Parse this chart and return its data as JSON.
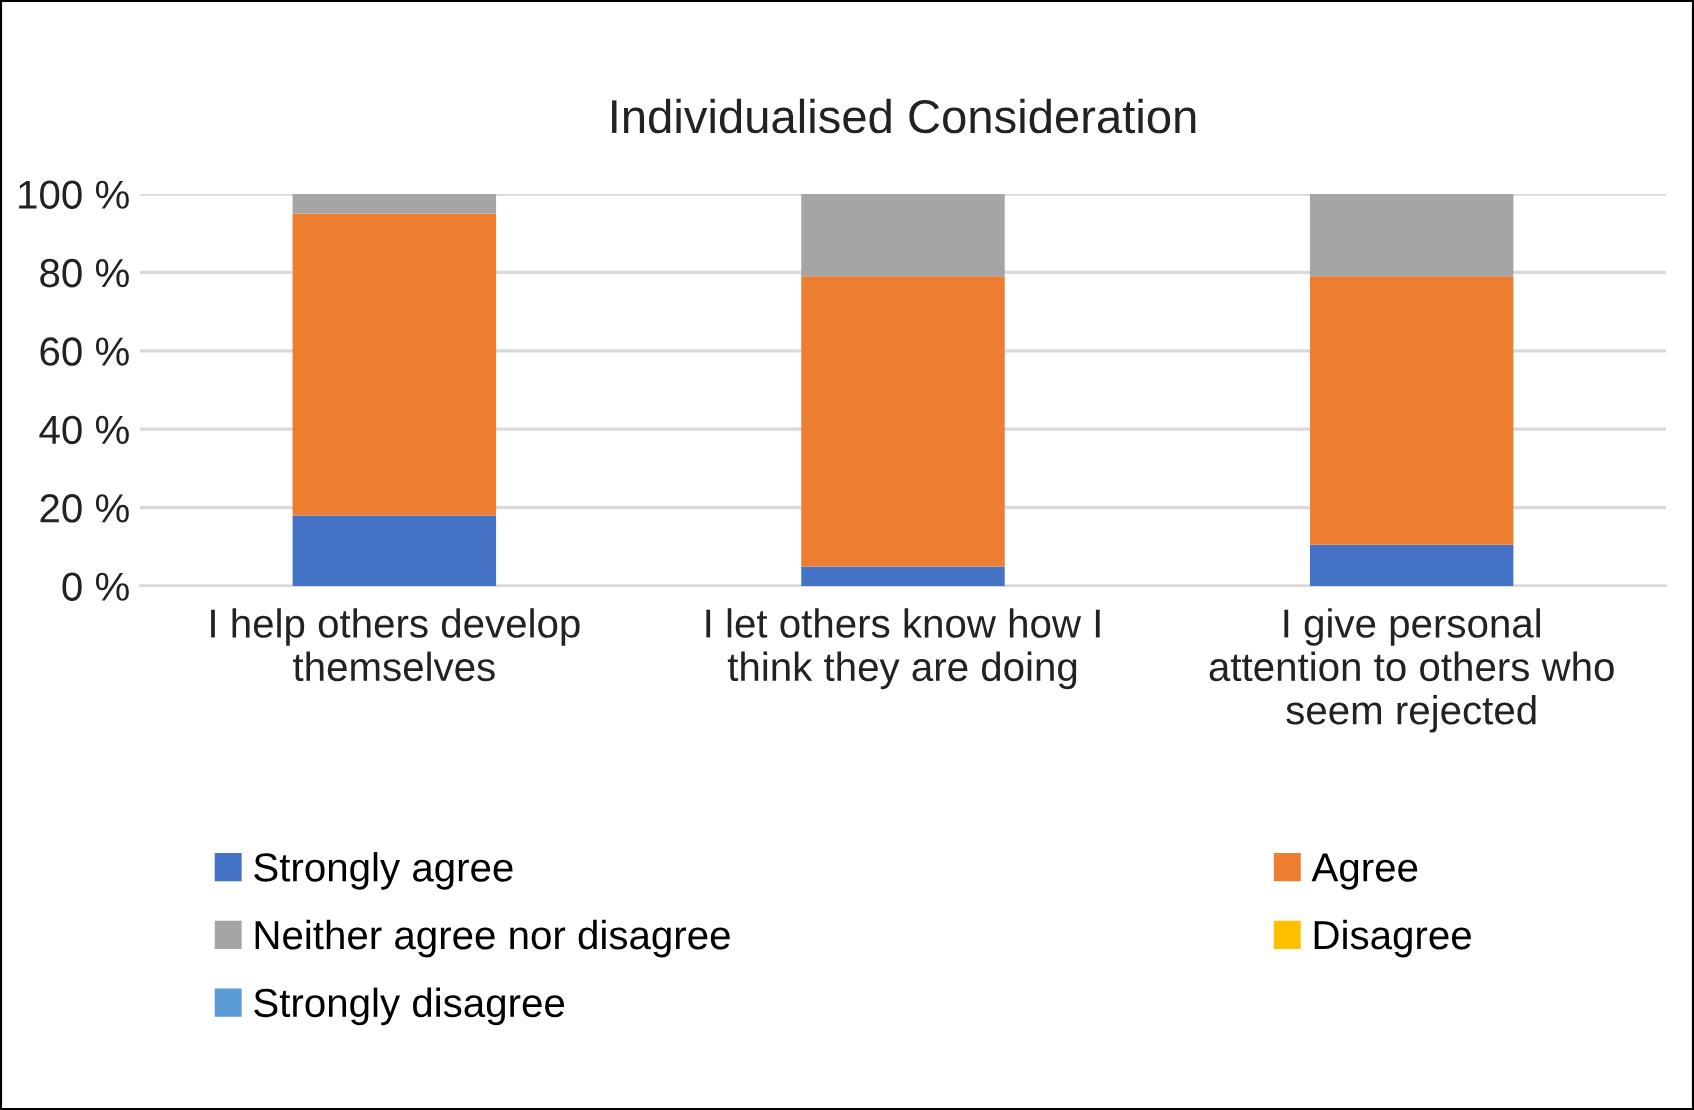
{
  "chart_data": {
    "type": "bar",
    "stacked": true,
    "title": "Individualised Consideration",
    "categories": [
      "I help others develop themselves",
      "I let others know how I think they are doing",
      "I give personal attention to others who seem rejected"
    ],
    "series": [
      {
        "name": "Strongly agree",
        "color": "#4472c4",
        "values": [
          18,
          5,
          10.5
        ]
      },
      {
        "name": "Agree",
        "color": "#ed7d31",
        "values": [
          77,
          74,
          68.5
        ]
      },
      {
        "name": "Neither agree nor disagree",
        "color": "#a5a5a5",
        "values": [
          5,
          21,
          21
        ]
      },
      {
        "name": "Disagree",
        "color": "#ffc000",
        "values": [
          0,
          0,
          0
        ]
      },
      {
        "name": "Strongly disagree",
        "color": "#5b9bd5",
        "values": [
          0,
          0,
          0
        ]
      }
    ],
    "ylim": [
      0,
      100
    ],
    "yticks": [
      {
        "value": 0,
        "label": "0 %"
      },
      {
        "value": 20,
        "label": "20 %"
      },
      {
        "value": 40,
        "label": "40 %"
      },
      {
        "value": 60,
        "label": "60 %"
      },
      {
        "value": 80,
        "label": "80 %"
      },
      {
        "value": 100,
        "label": "100 %"
      }
    ],
    "grid": "y",
    "legend": "bottom"
  }
}
